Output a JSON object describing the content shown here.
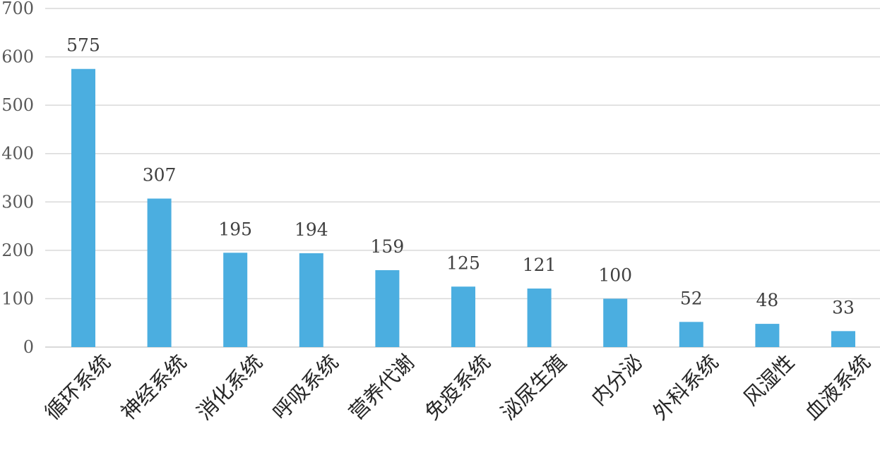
{
  "chart_data": {
    "type": "bar",
    "title": "",
    "xlabel": "",
    "ylabel": "",
    "categories": [
      "循环系统",
      "神经系统",
      "消化系统",
      "呼吸系统",
      "营养代谢",
      "免疫系统",
      "泌尿生殖",
      "内分泌",
      "外科系统",
      "风湿性",
      "血液系统"
    ],
    "values": [
      575,
      307,
      195,
      194,
      159,
      125,
      121,
      100,
      52,
      48,
      33
    ],
    "ylim": [
      0,
      700
    ],
    "yticks": [
      0,
      100,
      200,
      300,
      400,
      500,
      600,
      700
    ],
    "grid": true,
    "legend": "none",
    "data_labels": true,
    "bar_color": "#4baee0"
  }
}
